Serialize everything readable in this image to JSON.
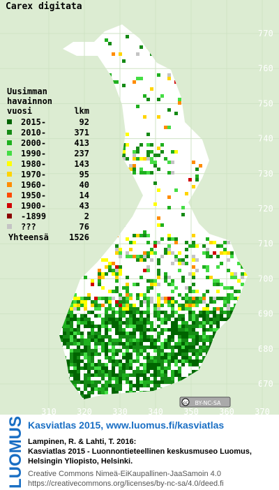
{
  "title": "Carex digitata",
  "legend": {
    "heading": [
      "Uusimman",
      "havainnon"
    ],
    "col_year": "vuosi",
    "col_count": "lkm",
    "entries": [
      {
        "label": "2015-",
        "count": 92,
        "color": "#006400"
      },
      {
        "label": "2010-",
        "count": 371,
        "color": "#158a15"
      },
      {
        "label": "2000-",
        "count": 413,
        "color": "#1fb01f"
      },
      {
        "label": "1990-",
        "count": 237,
        "color": "#44dd44"
      },
      {
        "label": "1980-",
        "count": 143,
        "color": "#ffff00"
      },
      {
        "label": "1970-",
        "count": 95,
        "color": "#ffd400"
      },
      {
        "label": "1960-",
        "count": 40,
        "color": "#ff8c00"
      },
      {
        "label": "1950-",
        "count": 14,
        "color": "#ff4a00"
      },
      {
        "label": "1900-",
        "count": 43,
        "color": "#d00000"
      },
      {
        "label": "-1899",
        "count": 2,
        "color": "#8b0000"
      },
      {
        "label": "???",
        "count": 76,
        "color": "#c4c4c4"
      }
    ],
    "total_label": "Yhteensä",
    "total": 1526
  },
  "grid": {
    "y_labels": [
      770,
      760,
      750,
      740,
      730,
      720,
      710,
      700,
      690,
      680,
      670
    ],
    "x_labels": [
      310,
      320,
      330,
      340,
      350,
      360,
      370
    ]
  },
  "badge": "BY-NC-SA",
  "footer": {
    "logo": "LUOMUS",
    "link": "Kasviatlas 2015, www.luomus.fi/kasviatlas",
    "citation": [
      "Lampinen, R. & Lahti, T. 2016:",
      "Kasviatlas 2015 - Luonnontieteellinen keskusmuseo Luomus,",
      "Helsingin Yliopisto, Helsinki."
    ],
    "license": [
      "Creative Commons Nimeä-EiKaupallinen-JaaSamoin 4.0",
      "https://creativecommons.org/licenses/by-nc-sa/4.0/deed.fi"
    ]
  }
}
